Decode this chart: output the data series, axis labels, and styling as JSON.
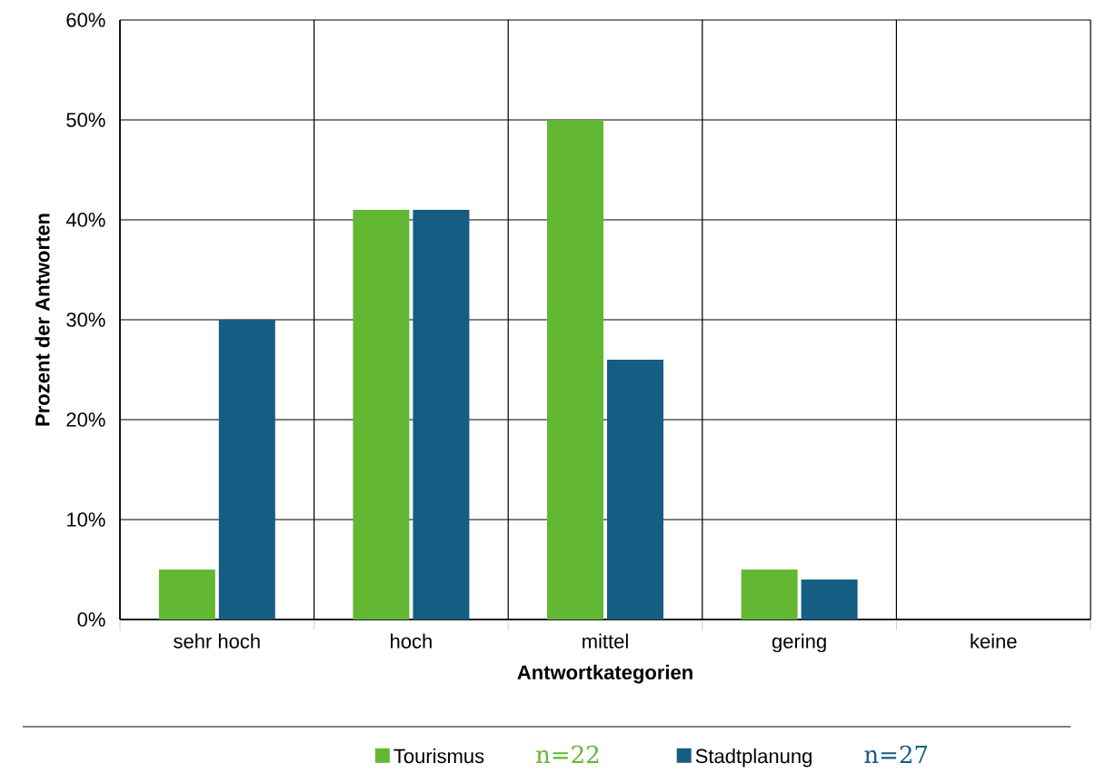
{
  "chart_data": {
    "type": "bar",
    "xlabel": "Antwortkategorien",
    "ylabel": "Prozent der Antworten",
    "categories": [
      "sehr hoch",
      "hoch",
      "mittel",
      "gering",
      "keine"
    ],
    "series": [
      {
        "name": "Tourismus",
        "color": "#62b832",
        "values": [
          5,
          41,
          50,
          5,
          0
        ]
      },
      {
        "name": "Stadtplanung",
        "color": "#155d82",
        "values": [
          30,
          41,
          26,
          4,
          0
        ]
      }
    ],
    "ylim": [
      0,
      60
    ],
    "yticks": [
      {
        "value": 0,
        "label": "0%"
      },
      {
        "value": 10,
        "label": "10%"
      },
      {
        "value": 20,
        "label": "20%"
      },
      {
        "value": 30,
        "label": "30%"
      },
      {
        "value": 40,
        "label": "40%"
      },
      {
        "value": 50,
        "label": "50%"
      },
      {
        "value": 60,
        "label": "60%"
      }
    ],
    "grid": true,
    "legend": "bottom",
    "annotations": [
      "n=22",
      "n=27"
    ]
  }
}
